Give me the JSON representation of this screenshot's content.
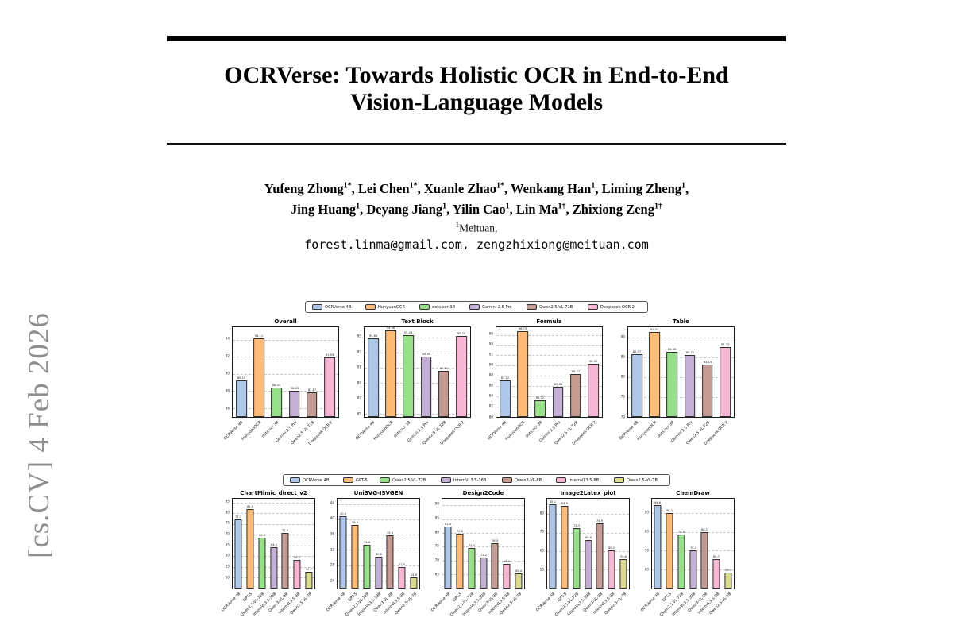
{
  "page": {
    "arxiv_banner": "[cs.CV] 4 Feb 2026",
    "title_line1": "OCRVerse: Towards Holistic OCR in End-to-End",
    "title_line2": "Vision-Language Models",
    "authors_line1": [
      {
        "name": "Yufeng Zhong",
        "sup": "1*"
      },
      {
        "name": "Lei Chen",
        "sup": "1*"
      },
      {
        "name": "Xuanle Zhao",
        "sup": "1*"
      },
      {
        "name": "Wenkang Han",
        "sup": "1"
      },
      {
        "name": "Liming Zheng",
        "sup": "1"
      }
    ],
    "authors_line2": [
      {
        "name": "Jing Huang",
        "sup": "1"
      },
      {
        "name": "Deyang Jiang",
        "sup": "1"
      },
      {
        "name": "Yilin Cao",
        "sup": "1"
      },
      {
        "name": "Lin Ma",
        "sup": "1†"
      },
      {
        "name": "Zhixiong Zeng",
        "sup": "1†"
      }
    ],
    "affiliation_sup": "1",
    "affiliation_text": "Meituan,",
    "emails": "forest.linma@gmail.com, zengzhixiong@meituan.com"
  },
  "figure1": {
    "decimals": 2,
    "legend": [
      {
        "label": "OCRVerse 4B",
        "color": "#aec7e8"
      },
      {
        "label": "HunyuanOCR",
        "color": "#ffbb78"
      },
      {
        "label": "dots.ocr 3B",
        "color": "#98df8a"
      },
      {
        "label": "Gemini 2.5 Pro",
        "color": "#c5b0d5"
      },
      {
        "label": "Qwen2.5 VL 72B",
        "color": "#c49c94"
      },
      {
        "label": "Deepseek OCR 2",
        "color": "#f7b6d2"
      }
    ],
    "categories": [
      "OCRVerse 4B",
      "HunyuanOCR",
      "dots.ocr 3B",
      "Gemini 2.5 Pro",
      "Qwen2.5 VL 72B",
      "Deepseek OCR 2"
    ],
    "charts": [
      {
        "type": "bar",
        "title": "Overall",
        "ylim": [
          85,
          95.5
        ],
        "yticks": [
          86,
          88,
          90,
          92,
          94
        ],
        "values": [
          89.19,
          94.11,
          88.41,
          88.03,
          87.87,
          91.93
        ]
      },
      {
        "type": "bar",
        "title": "Text Block",
        "ylim": [
          84.6,
          96.4
        ],
        "yticks": [
          85,
          87,
          89,
          91,
          93,
          95
        ],
        "values": [
          94.88,
          95.88,
          95.28,
          92.5,
          90.6,
          95.2
        ]
      },
      {
        "type": "bar",
        "title": "Formula",
        "ylim": [
          80,
          97.6
        ],
        "yticks": [
          80,
          82,
          84,
          86,
          88,
          90,
          92,
          94,
          96
        ],
        "values": [
          87.12,
          96.73,
          83.22,
          85.82,
          88.27,
          90.31
        ]
      },
      {
        "type": "bar",
        "title": "Table",
        "ylim": [
          70,
          92.8
        ],
        "yticks": [
          70,
          75,
          80,
          85,
          90
        ],
        "values": [
          85.77,
          91.41,
          86.38,
          85.71,
          83.15,
          87.73
        ]
      }
    ]
  },
  "figure2": {
    "decimals": 1,
    "legend": [
      {
        "label": "OCRVerse 4B",
        "color": "#aec7e8"
      },
      {
        "label": "GPT-5",
        "color": "#ffbb78"
      },
      {
        "label": "Qwen2.5-VL-72B",
        "color": "#98df8a"
      },
      {
        "label": "InternVL3.5-38B",
        "color": "#c5b0d5"
      },
      {
        "label": "Qwen3-VL-8B",
        "color": "#c49c94"
      },
      {
        "label": "InternVL3.5-8B",
        "color": "#f7b6d2"
      },
      {
        "label": "Qwen2.5-VL-7B",
        "color": "#dbdb8d"
      }
    ],
    "categories": [
      "OCRVerse 4B",
      "GPT-5",
      "Qwen2.5-VL-72B",
      "InternVL3.5-38B",
      "Qwen3-VL-8B",
      "InternVL3.5-8B",
      "Qwen2.5-VL-7B"
    ],
    "charts": [
      {
        "type": "bar",
        "title": "ChartMimic_direct_v2",
        "ylim": [
          45,
          87
        ],
        "yticks": [
          50,
          55,
          60,
          65,
          70,
          75,
          80,
          85
        ],
        "values": [
          77.3,
          81.9,
          68.5,
          64.2,
          71.0,
          58.3,
          52.7
        ]
      },
      {
        "type": "bar",
        "title": "UniSVG-ISVGEN",
        "ylim": [
          22,
          45.5
        ],
        "yticks": [
          24,
          28,
          32,
          36,
          40,
          44
        ],
        "values": [
          40.8,
          38.6,
          33.4,
          30.2,
          35.8,
          27.5,
          24.9
        ]
      },
      {
        "type": "bar",
        "title": "Design2Code",
        "ylim": [
          60,
          92.5
        ],
        "yticks": [
          65,
          70,
          75,
          80,
          85,
          90
        ],
        "values": [
          82.4,
          79.8,
          74.5,
          71.2,
          76.3,
          68.9,
          65.4
        ]
      },
      {
        "type": "bar",
        "title": "Image2Latex_plot",
        "ylim": [
          40,
          88.5
        ],
        "yticks": [
          50,
          60,
          70,
          80
        ],
        "values": [
          85.1,
          84.6,
          72.3,
          65.8,
          74.9,
          60.2,
          55.6
        ]
      },
      {
        "type": "bar",
        "title": "ChemDraw",
        "ylim": [
          50,
          98
        ],
        "yticks": [
          60,
          70,
          80,
          90
        ],
        "values": [
          94.6,
          90.2,
          78.5,
          70.3,
          80.1,
          65.7,
          58.4
        ]
      }
    ]
  }
}
